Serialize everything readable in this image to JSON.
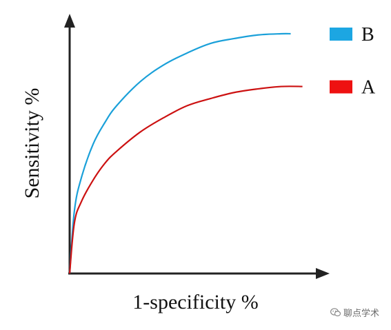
{
  "chart_data": {
    "type": "line",
    "title": "",
    "xlabel": "1-specificity %",
    "ylabel": "Sensitivity %",
    "xlim": [
      0,
      1
    ],
    "ylim": [
      0,
      1
    ],
    "ticks": false,
    "grid": false,
    "legend_position": "top-right",
    "series": [
      {
        "name": "B",
        "color": "#1aa0d9",
        "x": [
          0,
          0.02,
          0.05,
          0.1,
          0.15,
          0.2,
          0.3,
          0.4,
          0.5,
          0.6,
          0.7,
          0.8,
          0.9,
          0.94
        ],
        "y": [
          0,
          0.26,
          0.4,
          0.54,
          0.63,
          0.7,
          0.8,
          0.87,
          0.92,
          0.96,
          0.98,
          0.995,
          1.0,
          1.0
        ]
      },
      {
        "name": "A",
        "color": "#cc1111",
        "x": [
          0,
          0.02,
          0.05,
          0.1,
          0.15,
          0.2,
          0.3,
          0.4,
          0.5,
          0.6,
          0.7,
          0.8,
          0.9,
          0.99
        ],
        "y": [
          0,
          0.21,
          0.3,
          0.39,
          0.46,
          0.51,
          0.59,
          0.65,
          0.7,
          0.73,
          0.755,
          0.77,
          0.78,
          0.78
        ]
      }
    ]
  },
  "watermark": {
    "icon": "wechat-icon",
    "text": "聊点学术"
  }
}
